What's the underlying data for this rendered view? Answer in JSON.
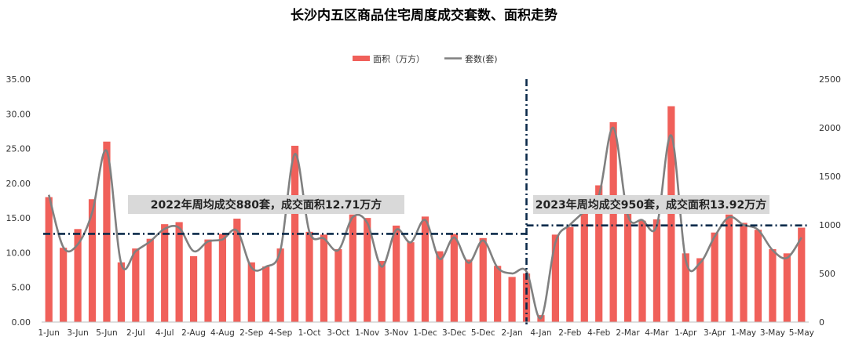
{
  "chart_data": {
    "type": "bar",
    "title": "长沙内五区商品住宅周度成交套数、面积走势",
    "legend": {
      "position": "top",
      "items": [
        {
          "label": "面积（万方）",
          "color": "#f0605a",
          "kind": "bar"
        },
        {
          "label": "套数(套)",
          "color": "#808080",
          "kind": "line"
        }
      ]
    },
    "y_left": {
      "min": 0,
      "max": 35,
      "step": 5,
      "tick_labels": [
        "0.00",
        "5.00",
        "10.00",
        "15.00",
        "20.00",
        "25.00",
        "30.00",
        "35.00"
      ]
    },
    "y_right": {
      "min": 0,
      "max": 2500,
      "step": 500,
      "tick_labels": [
        "0",
        "500",
        "1000",
        "1500",
        "2000",
        "2500"
      ]
    },
    "x_tick_labels": [
      "1-Jun",
      "3-Jun",
      "5-Jun",
      "2-Jul",
      "4-Jul",
      "2-Aug",
      "4-Aug",
      "2-Sep",
      "4-Sep",
      "1-Oct",
      "3-Oct",
      "1-Nov",
      "3-Nov",
      "1-Dec",
      "3-Dec",
      "5-Dec",
      "2-Jan",
      "4-Jan",
      "2-Feb",
      "4-Feb",
      "2-Mar",
      "4-Mar",
      "1-Apr",
      "3-Apr",
      "1-May",
      "3-May",
      "5-May"
    ],
    "series": [
      {
        "name": "面积（万方）",
        "axis": "left",
        "values": [
          18.0,
          10.7,
          13.4,
          17.7,
          26.0,
          8.6,
          10.6,
          12.0,
          14.1,
          14.4,
          9.5,
          11.9,
          12.7,
          14.9,
          8.6,
          8.0,
          10.6,
          25.4,
          13.0,
          12.6,
          10.5,
          15.5,
          15.0,
          8.8,
          13.9,
          11.5,
          15.2,
          10.2,
          12.7,
          9.0,
          12.1,
          8.1,
          6.5,
          7.0,
          1.0,
          12.6,
          13.7,
          17.0,
          19.7,
          28.8,
          15.7,
          14.6,
          14.8,
          31.1,
          9.9,
          9.2,
          12.9,
          15.5,
          14.3,
          13.3,
          10.5,
          9.9,
          13.6
        ]
      },
      {
        "name": "套数(套)",
        "axis": "right",
        "values": [
          1310,
          770,
          800,
          1130,
          1760,
          600,
          730,
          830,
          960,
          970,
          730,
          830,
          850,
          940,
          560,
          570,
          740,
          1730,
          930,
          860,
          740,
          1080,
          1020,
          570,
          950,
          820,
          1050,
          650,
          870,
          610,
          840,
          560,
          500,
          520,
          40,
          820,
          1000,
          1140,
          1300,
          2000,
          1100,
          1050,
          990,
          1920,
          640,
          610,
          880,
          1080,
          1000,
          950,
          740,
          660,
          870
        ]
      }
    ],
    "reference_lines": [
      {
        "label": "2022年周均成交880套，成交面积12.71万方",
        "axis_left_value": 12.71,
        "axis_right_value": 880,
        "color": "#0b2a4a"
      },
      {
        "label": "2023年周均成交950套，成交面积13.92万方",
        "axis_left_value": 13.92,
        "axis_right_value": 950,
        "color": "#0b2a4a"
      }
    ],
    "divider": {
      "color": "#0b2a4a"
    },
    "grid": false
  }
}
